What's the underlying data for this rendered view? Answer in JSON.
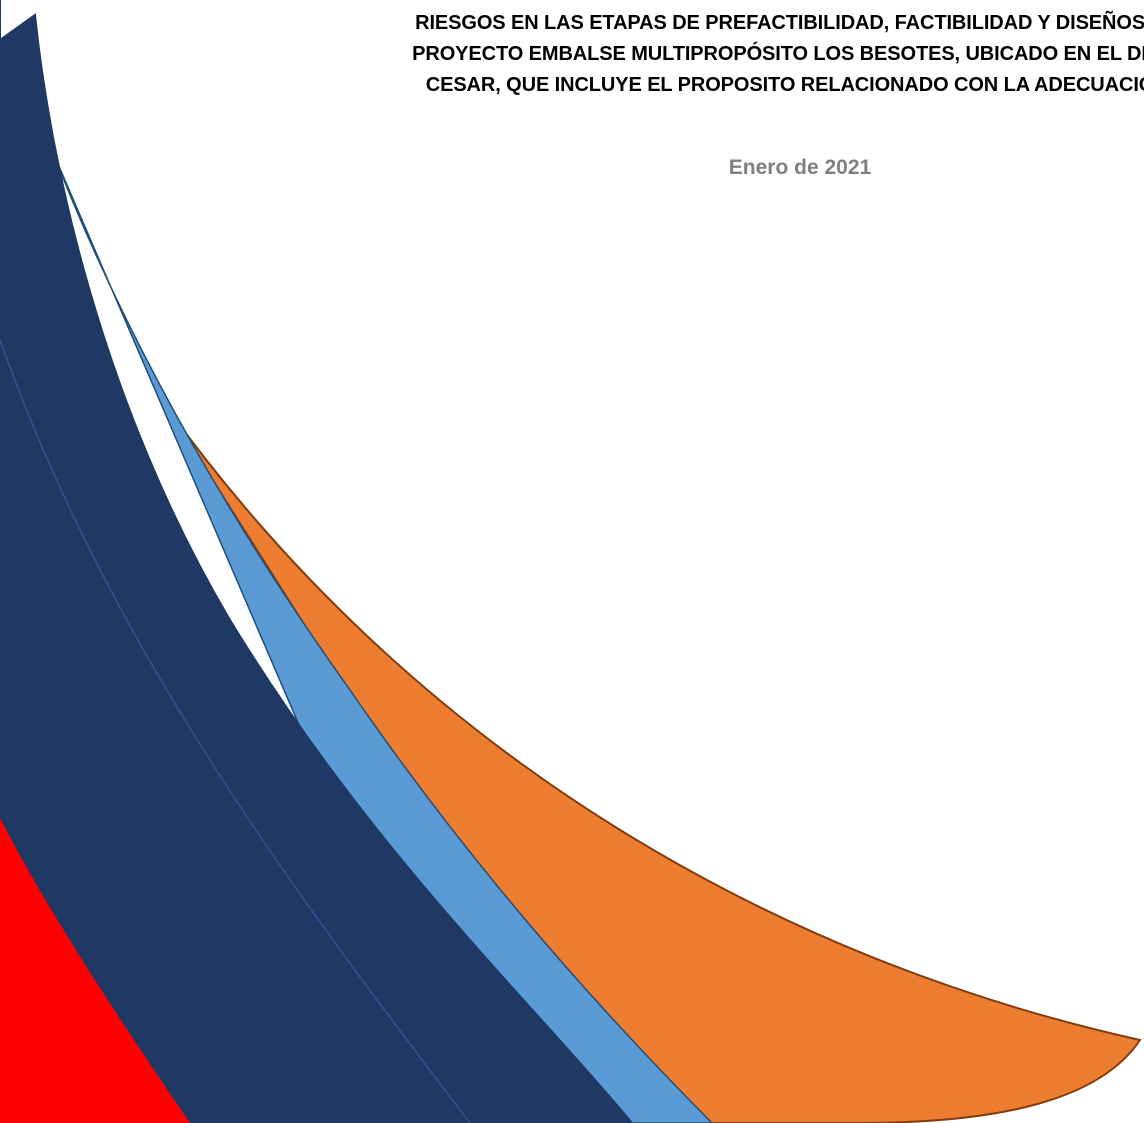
{
  "document": {
    "title_lines": [
      "RIESGOS EN LAS ETAPAS DE PREFACTIBILIDAD, FACTIBILIDAD Y DISEÑOS D",
      "PROYECTO EMBALSE MULTIPROPÓSITO LOS BESOTES, UBICADO EN EL DEP",
      "CESAR, QUE INCLUYE EL PROPOSITO RELACIONADO CON LA ADECUACIÓ"
    ],
    "date": "Enero de 2021"
  },
  "colors": {
    "navy": "#203864",
    "light_blue": "#5b9bd5",
    "orange": "#ed7d31",
    "red": "#ff0000",
    "date_gray": "#808080"
  }
}
